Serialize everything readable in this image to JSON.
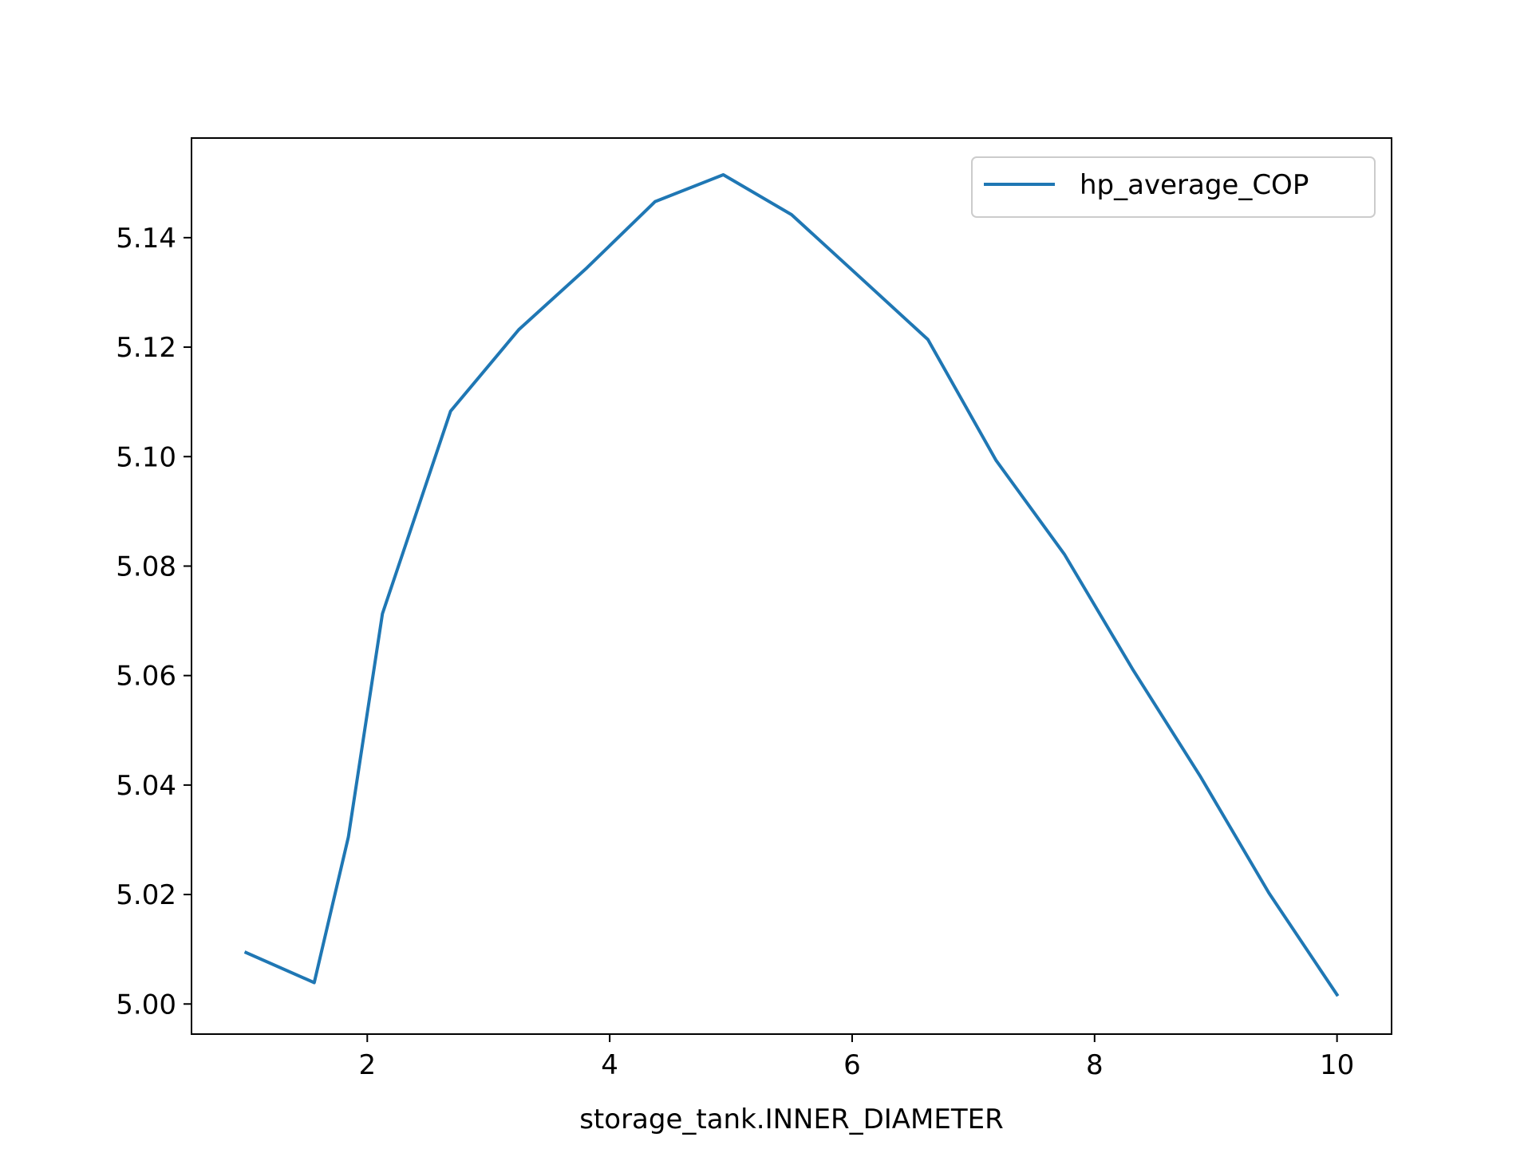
{
  "chart_data": {
    "type": "line",
    "title": "",
    "xlabel": "storage_tank.INNER_DIAMETER",
    "ylabel": "",
    "xlim": [
      0.55,
      10.45
    ],
    "ylim": [
      4.9945,
      5.1582
    ],
    "x_ticks": [
      2,
      4,
      6,
      8,
      10
    ],
    "x_tick_labels": [
      "2",
      "4",
      "6",
      "8",
      "10"
    ],
    "y_ticks": [
      5.0,
      5.02,
      5.04,
      5.06,
      5.08,
      5.1,
      5.12,
      5.14
    ],
    "y_tick_labels": [
      "5.00",
      "5.02",
      "5.04",
      "5.06",
      "5.08",
      "5.10",
      "5.12",
      "5.14"
    ],
    "grid": false,
    "legend_position": "top-right",
    "series": [
      {
        "name": "hp_average_COP",
        "color": "#1f77b4",
        "x": [
          1.0,
          1.5625,
          1.844,
          2.125,
          2.6875,
          3.25,
          3.8125,
          4.375,
          4.9375,
          5.5,
          6.0625,
          6.625,
          7.1875,
          7.75,
          8.3125,
          8.875,
          9.4375,
          10.0
        ],
        "y": [
          5.0094,
          5.0039,
          5.0305,
          5.0713,
          5.1083,
          5.1232,
          5.1345,
          5.1466,
          5.1515,
          5.1442,
          5.1328,
          5.1214,
          5.0993,
          5.0822,
          5.0612,
          5.0415,
          5.0203,
          5.0017
        ]
      }
    ]
  }
}
